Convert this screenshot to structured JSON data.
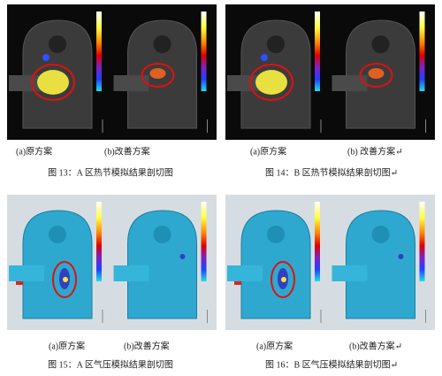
{
  "figures": [
    {
      "subcaptions": [
        "(a)原方案",
        "(b)改善方案"
      ],
      "caption": "图 13：A 区热节模拟结果剖切图"
    },
    {
      "subcaptions": [
        "(a)原方案",
        "(b) 改善方案↵"
      ],
      "caption": "图 14：B 区热节模拟结果剖切图↵"
    },
    {
      "subcaptions": [
        "(a)原方案",
        "(b)改善方案"
      ],
      "caption": "图 15：A 区气压模拟结果剖切图"
    },
    {
      "subcaptions": [
        "(a)原方案",
        "(b)改善方案↵"
      ],
      "caption": "图 16：B 区气压模拟结果剖切图↵"
    }
  ]
}
